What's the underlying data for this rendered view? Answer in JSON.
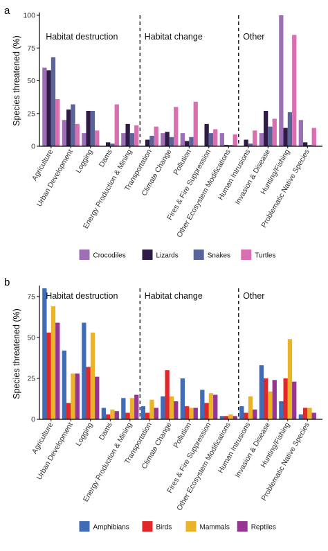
{
  "chart_data": [
    {
      "type": "bar",
      "panel": "a",
      "ylabel": "Species threatened (%)",
      "ylim": [
        0,
        100
      ],
      "yticks": [
        0,
        25,
        50,
        75,
        100
      ],
      "group_labels": [
        "Habitat destruction",
        "Habitat change",
        "Other"
      ],
      "group_breaks_after": [
        4,
        9
      ],
      "categories": [
        "Agriculture",
        "Urban Development",
        "Logging",
        "Dams",
        "Energy Production & Mining",
        "Transportation",
        "Climate Change",
        "Pollution",
        "Fires & Fire Suppression",
        "Other Ecosystem Modifications",
        "Human Intrusions",
        "Invasion & Disease",
        "Hunting/Fishing",
        "Problematic Native Species"
      ],
      "series": [
        {
          "name": "Crocodiles",
          "color": "#9c6fb6",
          "values": [
            60,
            20,
            10,
            0,
            10,
            0,
            10,
            10,
            0,
            10,
            0,
            10,
            100,
            20
          ]
        },
        {
          "name": "Lizards",
          "color": "#2f1b46",
          "values": [
            58,
            28,
            27,
            3,
            17,
            5,
            11,
            4,
            17,
            1,
            5,
            27,
            14,
            3
          ]
        },
        {
          "name": "Snakes",
          "color": "#5a6497",
          "values": [
            68,
            32,
            27,
            2,
            10,
            8,
            7,
            7,
            10,
            1,
            2,
            15,
            26,
            1
          ]
        },
        {
          "name": "Turtles",
          "color": "#d96eb0",
          "values": [
            36,
            17,
            12,
            32,
            16,
            15,
            30,
            34,
            13,
            9,
            12,
            21,
            85,
            14
          ]
        }
      ],
      "legend_position": "bottom"
    },
    {
      "type": "bar",
      "panel": "b",
      "ylabel": "Species threatened (%)",
      "ylim": [
        0,
        80
      ],
      "yticks": [
        0,
        25,
        50,
        75
      ],
      "group_labels": [
        "Habitat destruction",
        "Habitat change",
        "Other"
      ],
      "group_breaks_after": [
        4,
        9
      ],
      "categories": [
        "Agriculture",
        "Urban Development",
        "Logging",
        "Dams",
        "Energy Production & Mining",
        "Transportation",
        "Climate Change",
        "Pollution",
        "Fires & Fire Suppression",
        "Other Ecosystem Modifications",
        "Human Intrusions",
        "Invasion & Disease",
        "Hunting/Fishing",
        "Problematic Native Species"
      ],
      "series": [
        {
          "name": "Amphibians",
          "color": "#3f6cb4",
          "values": [
            80,
            42,
            59,
            7,
            13,
            8,
            14,
            25,
            18,
            2,
            8,
            33,
            11,
            3
          ]
        },
        {
          "name": "Birds",
          "color": "#e0272a",
          "values": [
            53,
            10,
            32,
            3,
            4,
            4,
            30,
            8,
            10,
            2,
            4,
            25,
            25,
            7
          ]
        },
        {
          "name": "Mammals",
          "color": "#ebb428",
          "values": [
            69,
            28,
            53,
            6,
            13,
            12,
            14,
            7,
            16,
            3,
            14,
            17,
            49,
            7
          ]
        },
        {
          "name": "Reptiles",
          "color": "#973593",
          "values": [
            59,
            28,
            26,
            5,
            15,
            7,
            11,
            7,
            15,
            2,
            6,
            24,
            23,
            4
          ]
        }
      ],
      "legend_position": "bottom"
    }
  ]
}
